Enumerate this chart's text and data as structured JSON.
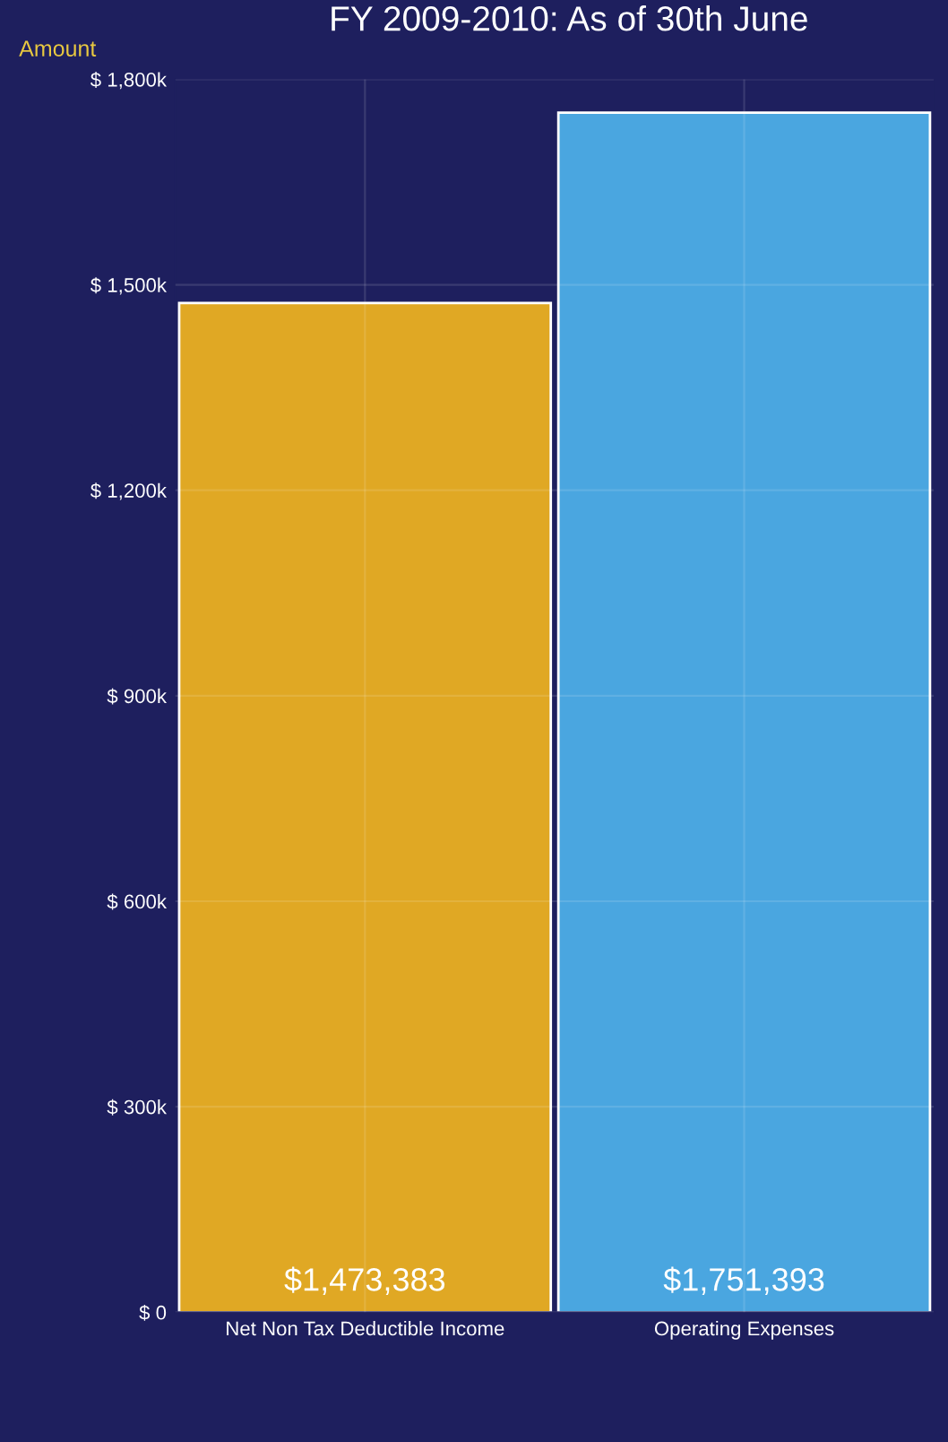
{
  "chart_data": {
    "type": "bar",
    "title": "FY 2009-2010: As of 30th June",
    "ylabel": "Amount",
    "categories": [
      "Net Non Tax Deductible Income",
      "Operating Expenses"
    ],
    "values": [
      1473383,
      1751393
    ],
    "colors": [
      "#e0a824",
      "#4aa6e0"
    ],
    "value_labels": [
      "$1,473,383",
      "$1,751,393"
    ],
    "ylim": [
      0,
      1800000
    ],
    "yticks": [
      {
        "value": 0,
        "label": "$ 0"
      },
      {
        "value": 300000,
        "label": "$ 300k"
      },
      {
        "value": 600000,
        "label": "$ 600k"
      },
      {
        "value": 900000,
        "label": "$ 900k"
      },
      {
        "value": 1200000,
        "label": "$ 1,200k"
      },
      {
        "value": 1500000,
        "label": "$ 1,500k"
      },
      {
        "value": 1800000,
        "label": "$ 1,800k"
      }
    ],
    "grid": true
  }
}
